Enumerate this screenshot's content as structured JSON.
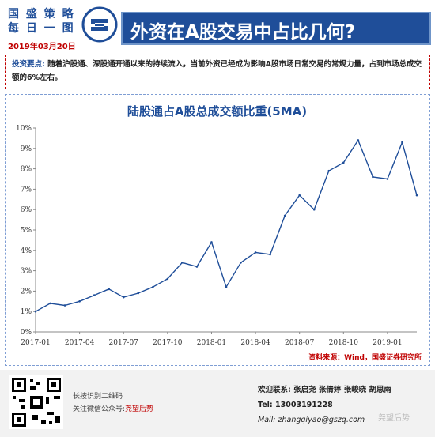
{
  "brand": {
    "line1": "国 盛 策 略",
    "line2_a": "每 日",
    "line2_b": "一 图",
    "date": "2019年03月20日"
  },
  "title": "外资在A股交易中占比几何?",
  "summary": {
    "key": "投资要点:",
    "text": "随着沪股通、深股通开通以来的持续流入，当前外资已经成为影响A股市场日常交易的常规力量，占到市场总成交额的6%左右。"
  },
  "colors": {
    "navy": "#1f4e99",
    "red": "#c00000",
    "line": "#1f4e99"
  },
  "chart_data": {
    "type": "line",
    "title": "陆股通占A股总成交额比重(5MA)",
    "xlabel": "",
    "ylabel": "",
    "ylim": [
      0,
      10
    ],
    "yticks": [
      0,
      1,
      2,
      3,
      4,
      5,
      6,
      7,
      8,
      9,
      10
    ],
    "ytick_labels": [
      "0%",
      "1%",
      "2%",
      "3%",
      "4%",
      "5%",
      "6%",
      "7%",
      "8%",
      "9%",
      "10%"
    ],
    "xticks": [
      "2017-01",
      "2017-04",
      "2017-07",
      "2017-10",
      "2018-01",
      "2018-04",
      "2018-07",
      "2018-10",
      "2019-01"
    ],
    "grid": false,
    "series": [
      {
        "name": "",
        "x": [
          "2017-01",
          "2017-02",
          "2017-03",
          "2017-04",
          "2017-05",
          "2017-06",
          "2017-07",
          "2017-08",
          "2017-09",
          "2017-10",
          "2017-11",
          "2017-12",
          "2018-01",
          "2018-02",
          "2018-03",
          "2018-04",
          "2018-05",
          "2018-06",
          "2018-07",
          "2018-08",
          "2018-09",
          "2018-10",
          "2018-11",
          "2018-12",
          "2019-01",
          "2019-02",
          "2019-03"
        ],
        "values": [
          1.0,
          1.4,
          1.3,
          1.5,
          1.8,
          2.1,
          1.7,
          1.9,
          2.2,
          2.6,
          3.4,
          3.2,
          4.4,
          2.2,
          3.4,
          3.9,
          3.8,
          5.7,
          6.7,
          6.0,
          7.9,
          8.3,
          9.4,
          7.6,
          7.5,
          9.3,
          6.7
        ]
      }
    ]
  },
  "source": "资料来源：Wind，国盛证券研究所",
  "footer": {
    "qr_line1": "长按识别二维码",
    "qr_line2_a": "关注微信公众号:",
    "qr_line2_b": "尧望后势",
    "contact_label": "欢迎联系:",
    "names": "张启尧   张倩婷   张峻晓   胡思雨",
    "phone": "Tel: 13003191228",
    "mail": "Mail: zhangqiyao@gszq.com",
    "watermark": "尧望后势"
  }
}
